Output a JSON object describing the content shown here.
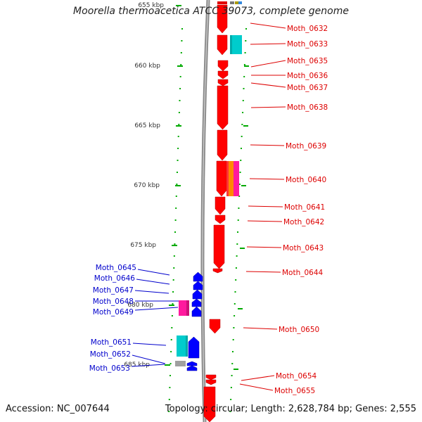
{
  "title": "Moorella thermoacetica ATCC 39073, complete genome",
  "accession": "Accession: NC_007644",
  "topology": "Topology: circular; Length: 2,628,784 bp; Genes: 2,555",
  "colors": {
    "forward_gene": "#ff0000",
    "reverse_gene": "#0000ff",
    "cyan_feature": "#00cccc",
    "magenta_feature": "#ff1a9e",
    "orange_feature": "#ff8800",
    "grey_feature": "#a0a0a0",
    "tick": "#00aa00",
    "backbone": "#888888",
    "right_label": "#dd0000",
    "left_label": "#0000cc"
  },
  "scale_labels": [
    "655 kbp",
    "660 kbp",
    "665 kbp",
    "670 kbp",
    "675 kbp",
    "680 kbp",
    "685 kbp"
  ],
  "right_genes": [
    "Moth_0632",
    "Moth_0633",
    "Moth_0635",
    "Moth_0636",
    "Moth_0637",
    "Moth_0638",
    "Moth_0639",
    "Moth_0640",
    "Moth_0641",
    "Moth_0642",
    "Moth_0643",
    "Moth_0644",
    "Moth_0650",
    "Moth_0654",
    "Moth_0655"
  ],
  "left_genes": [
    "Moth_0645",
    "Moth_0646",
    "Moth_0647",
    "Moth_0648",
    "Moth_0649",
    "Moth_0651",
    "Moth_0652",
    "Moth_0653"
  ]
}
